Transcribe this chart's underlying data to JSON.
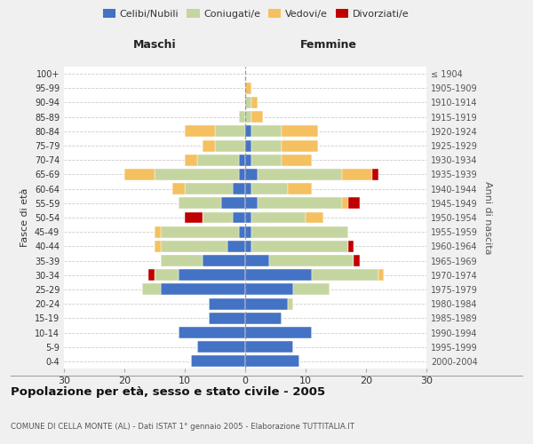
{
  "age_groups": [
    "0-4",
    "5-9",
    "10-14",
    "15-19",
    "20-24",
    "25-29",
    "30-34",
    "35-39",
    "40-44",
    "45-49",
    "50-54",
    "55-59",
    "60-64",
    "65-69",
    "70-74",
    "75-79",
    "80-84",
    "85-89",
    "90-94",
    "95-99",
    "100+"
  ],
  "birth_years": [
    "2000-2004",
    "1995-1999",
    "1990-1994",
    "1985-1989",
    "1980-1984",
    "1975-1979",
    "1970-1974",
    "1965-1969",
    "1960-1964",
    "1955-1959",
    "1950-1954",
    "1945-1949",
    "1940-1944",
    "1935-1939",
    "1930-1934",
    "1925-1929",
    "1920-1924",
    "1915-1919",
    "1910-1914",
    "1905-1909",
    "≤ 1904"
  ],
  "males": {
    "celibi": [
      9,
      8,
      11,
      6,
      6,
      14,
      11,
      7,
      3,
      1,
      2,
      4,
      2,
      1,
      1,
      0,
      0,
      0,
      0,
      0,
      0
    ],
    "coniugati": [
      0,
      0,
      0,
      0,
      0,
      3,
      4,
      7,
      11,
      13,
      5,
      7,
      8,
      14,
      7,
      5,
      5,
      1,
      0,
      0,
      0
    ],
    "vedovi": [
      0,
      0,
      0,
      0,
      0,
      0,
      0,
      0,
      1,
      1,
      0,
      0,
      2,
      5,
      2,
      2,
      5,
      0,
      0,
      0,
      0
    ],
    "divorziati": [
      0,
      0,
      0,
      0,
      0,
      0,
      1,
      0,
      0,
      0,
      3,
      0,
      0,
      0,
      0,
      0,
      0,
      0,
      0,
      0,
      0
    ]
  },
  "females": {
    "nubili": [
      9,
      8,
      11,
      6,
      7,
      8,
      11,
      4,
      1,
      1,
      1,
      2,
      1,
      2,
      1,
      1,
      1,
      0,
      0,
      0,
      0
    ],
    "coniugate": [
      0,
      0,
      0,
      0,
      1,
      6,
      11,
      14,
      16,
      16,
      9,
      14,
      6,
      14,
      5,
      5,
      5,
      1,
      1,
      0,
      0
    ],
    "vedove": [
      0,
      0,
      0,
      0,
      0,
      0,
      1,
      0,
      0,
      0,
      3,
      1,
      4,
      5,
      5,
      6,
      6,
      2,
      1,
      1,
      0
    ],
    "divorziate": [
      0,
      0,
      0,
      0,
      0,
      0,
      0,
      1,
      1,
      0,
      0,
      2,
      0,
      1,
      0,
      0,
      0,
      0,
      0,
      0,
      0
    ]
  },
  "colors": {
    "celibi": "#4472C4",
    "coniugati": "#C5D5A0",
    "vedovi": "#F5C060",
    "divorziati": "#C00000"
  },
  "xlim": 30,
  "title": "Popolazione per età, sesso e stato civile - 2005",
  "subtitle": "COMUNE DI CELLA MONTE (AL) - Dati ISTAT 1° gennaio 2005 - Elaborazione TUTTITALIA.IT",
  "ylabel_left": "Fasce di età",
  "ylabel_right": "Anni di nascita",
  "xlabel_left": "Maschi",
  "xlabel_right": "Femmine",
  "bg_color": "#f0f0f0",
  "plot_bg": "#ffffff"
}
